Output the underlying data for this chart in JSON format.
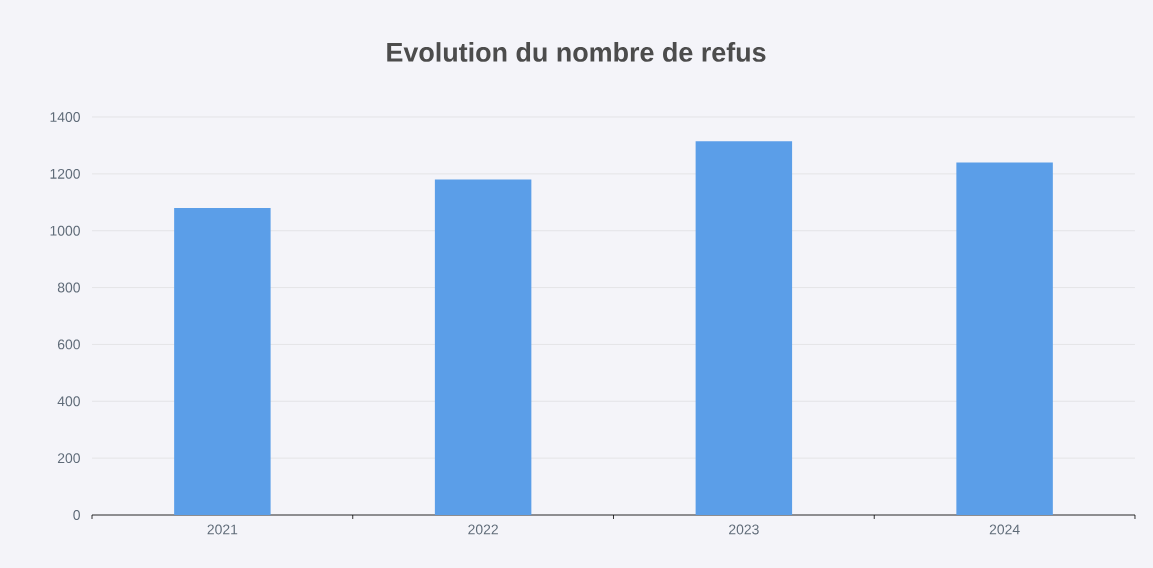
{
  "chart_data": {
    "type": "bar",
    "title": "Evolution du nombre de refus",
    "categories": [
      "2021",
      "2022",
      "2023",
      "2024"
    ],
    "values": [
      1080,
      1180,
      1315,
      1240
    ],
    "color": "#5b9ee8",
    "ylim": [
      0,
      1400
    ],
    "yticks": [
      0,
      200,
      400,
      600,
      800,
      1000,
      1200,
      1400
    ],
    "grid": "y"
  }
}
